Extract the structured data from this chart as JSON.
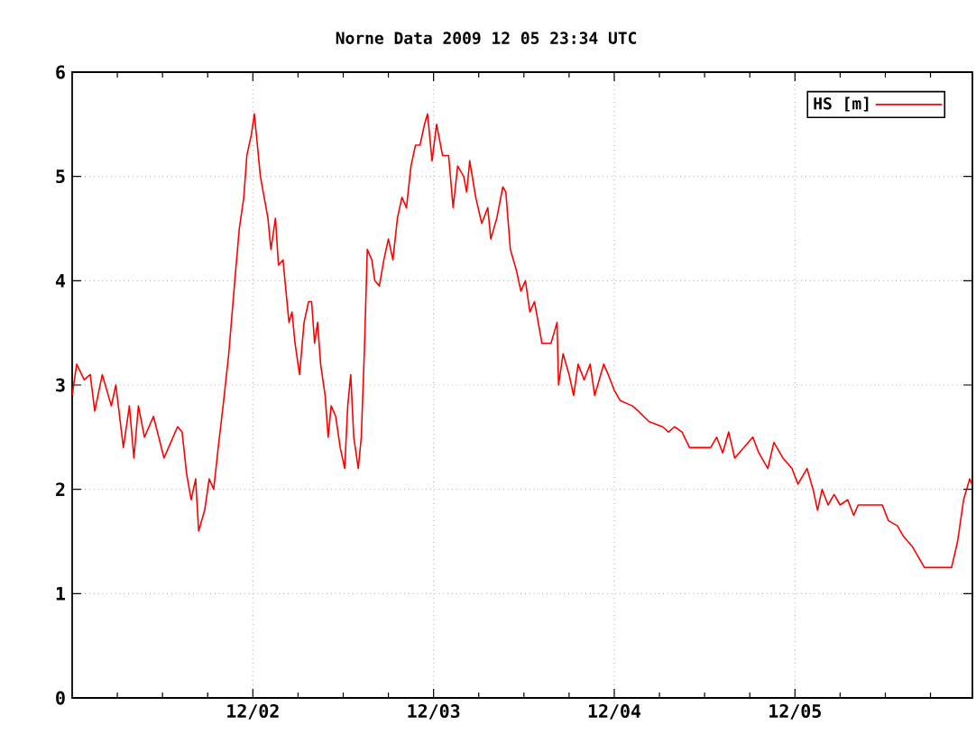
{
  "chart_data": {
    "type": "line",
    "title": "Norne Data 2009 12 05  23:34 UTC",
    "x": [
      "2009-12-01T00:00",
      "2009-12-01T00:36",
      "2009-12-01T01:36",
      "2009-12-01T02:24",
      "2009-12-01T03:00",
      "2009-12-01T04:00",
      "2009-12-01T05:12",
      "2009-12-01T05:48",
      "2009-12-01T06:48",
      "2009-12-01T07:36",
      "2009-12-01T08:12",
      "2009-12-01T08:48",
      "2009-12-01T09:36",
      "2009-12-01T10:48",
      "2009-12-01T12:12",
      "2009-12-01T12:48",
      "2009-12-01T14:00",
      "2009-12-01T14:36",
      "2009-12-01T15:12",
      "2009-12-01T15:48",
      "2009-12-01T16:24",
      "2009-12-01T16:48",
      "2009-12-01T17:36",
      "2009-12-01T18:12",
      "2009-12-01T18:48",
      "2009-12-01T19:24",
      "2009-12-01T20:12",
      "2009-12-01T20:48",
      "2009-12-01T21:36",
      "2009-12-01T22:12",
      "2009-12-01T22:48",
      "2009-12-01T23:12",
      "2009-12-01T23:48",
      "2009-12-02T00:12",
      "2009-12-02T01:00",
      "2009-12-02T02:00",
      "2009-12-02T02:24",
      "2009-12-02T03:00",
      "2009-12-02T03:24",
      "2009-12-02T04:00",
      "2009-12-02T04:48",
      "2009-12-02T05:12",
      "2009-12-02T05:36",
      "2009-12-02T06:12",
      "2009-12-02T06:48",
      "2009-12-02T07:24",
      "2009-12-02T07:48",
      "2009-12-02T08:12",
      "2009-12-02T08:36",
      "2009-12-02T09:00",
      "2009-12-02T09:36",
      "2009-12-02T10:00",
      "2009-12-02T10:24",
      "2009-12-02T11:00",
      "2009-12-02T11:36",
      "2009-12-02T12:12",
      "2009-12-02T12:36",
      "2009-12-02T13:00",
      "2009-12-02T13:24",
      "2009-12-02T14:00",
      "2009-12-02T14:24",
      "2009-12-02T14:48",
      "2009-12-02T15:12",
      "2009-12-02T15:48",
      "2009-12-02T16:12",
      "2009-12-02T16:48",
      "2009-12-02T17:24",
      "2009-12-02T18:00",
      "2009-12-02T18:36",
      "2009-12-02T19:12",
      "2009-12-02T19:48",
      "2009-12-02T20:24",
      "2009-12-02T21:00",
      "2009-12-02T21:36",
      "2009-12-02T22:12",
      "2009-12-02T22:48",
      "2009-12-02T23:12",
      "2009-12-02T23:48",
      "2009-12-03T00:24",
      "2009-12-03T01:12",
      "2009-12-03T02:00",
      "2009-12-03T02:36",
      "2009-12-03T03:12",
      "2009-12-03T04:00",
      "2009-12-03T04:24",
      "2009-12-03T04:48",
      "2009-12-03T05:36",
      "2009-12-03T06:24",
      "2009-12-03T07:12",
      "2009-12-03T07:36",
      "2009-12-03T08:24",
      "2009-12-03T09:12",
      "2009-12-03T09:36",
      "2009-12-03T10:12",
      "2009-12-03T11:00",
      "2009-12-03T11:36",
      "2009-12-03T12:12",
      "2009-12-03T12:48",
      "2009-12-03T13:24",
      "2009-12-03T14:24",
      "2009-12-03T15:36",
      "2009-12-03T16:24",
      "2009-12-03T16:36",
      "2009-12-03T17:12",
      "2009-12-03T18:00",
      "2009-12-03T18:36",
      "2009-12-03T19:12",
      "2009-12-03T20:00",
      "2009-12-03T20:48",
      "2009-12-03T21:24",
      "2009-12-03T22:36",
      "2009-12-03T23:12",
      "2009-12-04T00:00",
      "2009-12-04T00:48",
      "2009-12-04T02:24",
      "2009-12-04T03:12",
      "2009-12-04T04:36",
      "2009-12-04T06:24",
      "2009-12-04T07:12",
      "2009-12-04T08:00",
      "2009-12-04T09:00",
      "2009-12-04T10:00",
      "2009-12-04T12:48",
      "2009-12-04T13:36",
      "2009-12-04T14:24",
      "2009-12-04T15:12",
      "2009-12-04T16:00",
      "2009-12-04T17:12",
      "2009-12-04T18:24",
      "2009-12-04T19:12",
      "2009-12-04T20:24",
      "2009-12-04T21:12",
      "2009-12-04T22:24",
      "2009-12-04T23:36",
      "2009-12-05T00:24",
      "2009-12-05T01:36",
      "2009-12-05T02:24",
      "2009-12-05T03:00",
      "2009-12-05T03:36",
      "2009-12-05T04:24",
      "2009-12-05T05:12",
      "2009-12-05T06:00",
      "2009-12-05T07:00",
      "2009-12-05T07:48",
      "2009-12-05T08:24",
      "2009-12-05T09:36",
      "2009-12-05T11:36",
      "2009-12-05T12:24",
      "2009-12-05T13:36",
      "2009-12-05T14:24",
      "2009-12-05T15:36",
      "2009-12-05T17:12",
      "2009-12-05T18:24",
      "2009-12-05T19:36",
      "2009-12-05T20:48",
      "2009-12-05T21:36",
      "2009-12-05T22:24",
      "2009-12-05T23:12",
      "2009-12-05T23:30"
    ],
    "series": [
      {
        "name": "HS [m]",
        "color": "#ff0000",
        "values": [
          2.9,
          3.2,
          3.05,
          3.1,
          2.75,
          3.1,
          2.8,
          3.0,
          2.4,
          2.8,
          2.3,
          2.8,
          2.5,
          2.7,
          2.3,
          2.4,
          2.6,
          2.55,
          2.15,
          1.9,
          2.1,
          1.6,
          1.8,
          2.1,
          2.0,
          2.4,
          2.9,
          3.3,
          4.0,
          4.5,
          4.8,
          5.2,
          5.4,
          5.6,
          5.0,
          4.6,
          4.3,
          4.6,
          4.15,
          4.2,
          3.6,
          3.7,
          3.4,
          3.1,
          3.6,
          3.8,
          3.8,
          3.4,
          3.6,
          3.2,
          2.9,
          2.5,
          2.8,
          2.7,
          2.4,
          2.2,
          2.8,
          3.1,
          2.5,
          2.2,
          2.5,
          3.3,
          4.3,
          4.2,
          4.0,
          3.95,
          4.2,
          4.4,
          4.2,
          4.6,
          4.8,
          4.7,
          5.1,
          5.3,
          5.3,
          5.5,
          5.6,
          5.15,
          5.5,
          5.2,
          5.2,
          4.7,
          5.1,
          5.0,
          4.85,
          5.15,
          4.8,
          4.55,
          4.7,
          4.4,
          4.6,
          4.9,
          4.85,
          4.3,
          4.1,
          3.9,
          4.0,
          3.7,
          3.8,
          3.4,
          3.4,
          3.6,
          3.0,
          3.3,
          3.1,
          2.9,
          3.2,
          3.05,
          3.2,
          2.9,
          3.2,
          3.1,
          2.95,
          2.85,
          2.8,
          2.75,
          2.65,
          2.6,
          2.55,
          2.6,
          2.55,
          2.4,
          2.4,
          2.5,
          2.35,
          2.55,
          2.3,
          2.4,
          2.5,
          2.35,
          2.2,
          2.45,
          2.3,
          2.2,
          2.05,
          2.2,
          2.0,
          1.8,
          2.0,
          1.85,
          1.95,
          1.85,
          1.9,
          1.75,
          1.85,
          1.85,
          1.85,
          1.7,
          1.65,
          1.55,
          1.45,
          1.25,
          1.25,
          1.25,
          1.25,
          1.5,
          1.9,
          2.1,
          2.05
        ]
      }
    ],
    "xlim": [
      "2009-12-01T00:00",
      "2009-12-05T23:34"
    ],
    "xticks": [
      {
        "value": "2009-12-01T06:00",
        "label": null
      },
      {
        "value": "2009-12-01T12:00",
        "label": null
      },
      {
        "value": "2009-12-01T18:00",
        "label": null
      },
      {
        "value": "2009-12-02",
        "label": "12/02"
      },
      {
        "value": "2009-12-02T06:00",
        "label": null
      },
      {
        "value": "2009-12-02T12:00",
        "label": null
      },
      {
        "value": "2009-12-02T18:00",
        "label": null
      },
      {
        "value": "2009-12-03",
        "label": "12/03"
      },
      {
        "value": "2009-12-03T06:00",
        "label": null
      },
      {
        "value": "2009-12-03T12:00",
        "label": null
      },
      {
        "value": "2009-12-03T18:00",
        "label": null
      },
      {
        "value": "2009-12-04",
        "label": "12/04"
      },
      {
        "value": "2009-12-04T06:00",
        "label": null
      },
      {
        "value": "2009-12-04T12:00",
        "label": null
      },
      {
        "value": "2009-12-04T18:00",
        "label": null
      },
      {
        "value": "2009-12-05",
        "label": "12/05"
      },
      {
        "value": "2009-12-05T06:00",
        "label": null
      },
      {
        "value": "2009-12-05T12:00",
        "label": null
      },
      {
        "value": "2009-12-05T18:00",
        "label": null
      }
    ],
    "ylim": [
      0,
      6
    ],
    "yticks": [
      0,
      1,
      2,
      3,
      4,
      5,
      6
    ],
    "grid": true,
    "legend": "top right",
    "marker": "none",
    "line_style": "solid"
  }
}
